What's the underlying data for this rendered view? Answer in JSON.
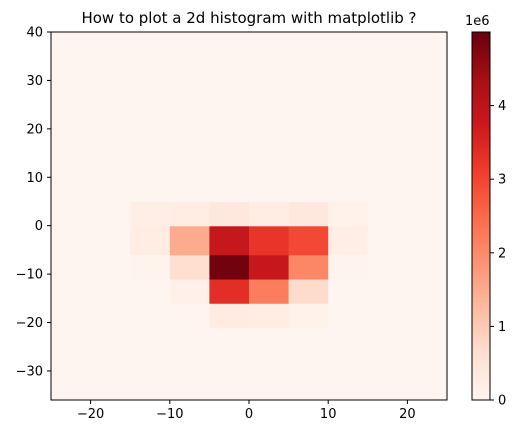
{
  "chart_data": {
    "type": "heatmap",
    "title": "How to plot a 2d histogram with matplotlib ?",
    "xlabel": "",
    "ylabel": "",
    "xlim": [
      -25,
      25
    ],
    "ylim": [
      -36,
      40
    ],
    "x_ticks": [
      -20,
      -10,
      0,
      10,
      20
    ],
    "y_ticks": [
      -30,
      -20,
      -10,
      0,
      10,
      20,
      30,
      40
    ],
    "x_edges": [
      -25,
      -20,
      -15,
      -10,
      -5,
      0,
      5,
      10,
      15,
      20,
      25
    ],
    "y_edges": [
      -36,
      -31,
      -26,
      -21,
      -16,
      -11,
      -6,
      0,
      5,
      11,
      16,
      21,
      26,
      31,
      36,
      40
    ],
    "counts": [
      [
        0,
        0,
        0,
        0,
        0,
        0,
        0,
        0,
        0,
        0
      ],
      [
        0,
        0,
        0,
        0,
        0,
        0,
        0,
        0,
        0,
        0
      ],
      [
        0,
        0,
        0,
        0,
        0,
        0,
        0,
        0,
        0,
        0
      ],
      [
        0,
        0,
        0,
        0,
        300000,
        250000,
        100000,
        0,
        0,
        0
      ],
      [
        0,
        0,
        0,
        150000,
        3350000,
        2200000,
        700000,
        0,
        0,
        0
      ],
      [
        0,
        0,
        50000,
        650000,
        4900000,
        3850000,
        2050000,
        50000,
        0,
        0
      ],
      [
        0,
        0,
        250000,
        1500000,
        3850000,
        3250000,
        2950000,
        200000,
        0,
        0
      ],
      [
        0,
        0,
        200000,
        250000,
        400000,
        250000,
        400000,
        100000,
        0,
        0
      ],
      [
        0,
        0,
        0,
        0,
        0,
        0,
        0,
        0,
        0,
        0
      ],
      [
        0,
        0,
        0,
        0,
        0,
        0,
        0,
        0,
        0,
        0
      ],
      [
        0,
        0,
        0,
        0,
        0,
        0,
        0,
        0,
        0,
        0
      ],
      [
        0,
        0,
        0,
        0,
        0,
        0,
        0,
        0,
        0,
        0
      ],
      [
        0,
        0,
        0,
        0,
        0,
        0,
        0,
        0,
        0,
        0
      ],
      [
        0,
        0,
        0,
        0,
        0,
        0,
        0,
        0,
        0,
        0
      ],
      [
        0,
        0,
        0,
        0,
        0,
        0,
        0,
        0,
        0,
        0
      ]
    ],
    "colormap": "Reds",
    "colormap_stops": [
      "#fff5f0",
      "#fee0d2",
      "#fcbba1",
      "#fc9272",
      "#fb6a4a",
      "#ef3b2c",
      "#cb181d",
      "#a50f15",
      "#67000d"
    ],
    "colorbar": {
      "vmin": 0,
      "vmax": 5000000,
      "ticks": [
        0,
        1000000,
        2000000,
        3000000,
        4000000
      ],
      "tick_labels": [
        "0",
        "1",
        "2",
        "3",
        "4"
      ],
      "offset_label": "1e6"
    },
    "grid": false,
    "legend": "none"
  }
}
